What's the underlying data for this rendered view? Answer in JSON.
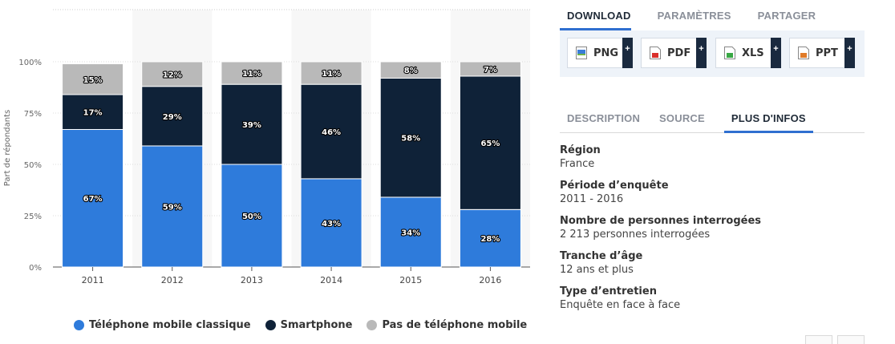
{
  "chart_data": {
    "type": "bar",
    "stacked": true,
    "categories": [
      "2011",
      "2012",
      "2013",
      "2014",
      "2015",
      "2016"
    ],
    "series": [
      {
        "name": "Téléphone mobile classique",
        "color": "#2e7bdb",
        "values": [
          67,
          59,
          50,
          43,
          34,
          28
        ],
        "labels": [
          "67%",
          "59%",
          "50%",
          "43%",
          "34%",
          "28%"
        ]
      },
      {
        "name": "Smartphone",
        "color": "#0f2238",
        "values": [
          17,
          29,
          39,
          46,
          58,
          65
        ],
        "labels": [
          "17%",
          "29%",
          "39%",
          "46%",
          "58%",
          "65%"
        ]
      },
      {
        "name": "Pas de téléphone mobile",
        "color": "#b9b9b9",
        "values": [
          15,
          12,
          11,
          11,
          8,
          7
        ],
        "labels": [
          "15%",
          "12%",
          "11%",
          "11%",
          "8%",
          "7%"
        ]
      }
    ],
    "ylabel": "Part de répondants",
    "ylim": [
      0,
      100
    ],
    "yticks": [
      "0%",
      "25%",
      "50%",
      "75%",
      "100%"
    ],
    "ytick_values": [
      0,
      25,
      50,
      75,
      100
    ],
    "grid": true,
    "legend_position": "bottom"
  },
  "download_tabs": [
    "DOWNLOAD",
    "PARAMÈTRES",
    "PARTAGER"
  ],
  "download_buttons": [
    {
      "label": "PNG",
      "plus": "+",
      "icon": "png-file-icon",
      "color": "#3b7dd8"
    },
    {
      "label": "PDF",
      "plus": "+",
      "icon": "pdf-file-icon",
      "color": "#d9302c"
    },
    {
      "label": "XLS",
      "plus": "+",
      "icon": "xls-file-icon",
      "color": "#3aa845"
    },
    {
      "label": "PPT",
      "plus": "+",
      "icon": "ppt-file-icon",
      "color": "#e07b28"
    }
  ],
  "info_tabs": [
    "DESCRIPTION",
    "SOURCE",
    "PLUS D'INFOS"
  ],
  "info": [
    {
      "label": "Région",
      "value": "France"
    },
    {
      "label": "Période d’enquête",
      "value": "2011 - 2016"
    },
    {
      "label": "Nombre de personnes interrogées",
      "value": "2 213 personnes interrogées"
    },
    {
      "label": "Tranche d’âge",
      "value": "12 ans et plus"
    },
    {
      "label": "Type d’entretien",
      "value": "Enquête en face à face"
    }
  ],
  "colors": {
    "accent": "#2f6fd0",
    "grid": "#dddddd",
    "panel_bg": "#eef3f9"
  }
}
